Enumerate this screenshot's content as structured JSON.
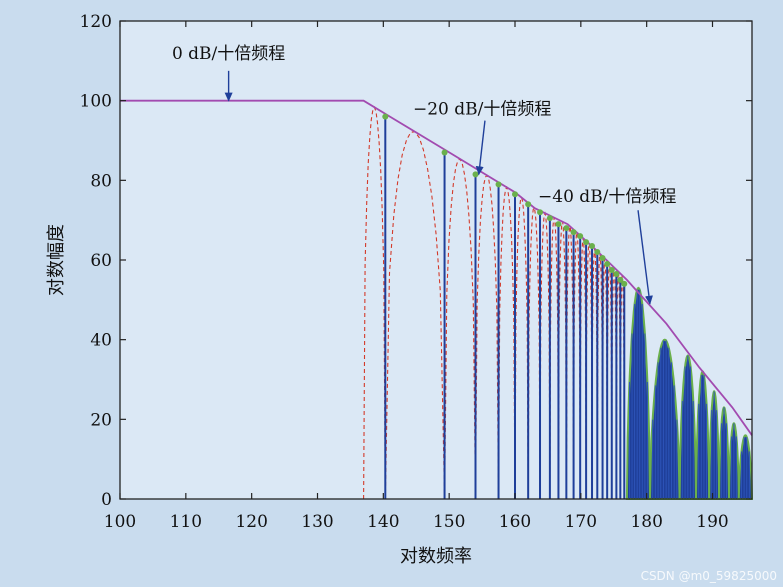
{
  "chart_data": {
    "type": "line",
    "title": "",
    "xlabel": "对数频率",
    "ylabel": "对数幅度",
    "xlim": [
      100,
      196
    ],
    "ylim": [
      0,
      120
    ],
    "x_ticks": [
      100,
      110,
      120,
      130,
      140,
      150,
      160,
      170,
      180,
      190
    ],
    "y_ticks": [
      0,
      20,
      40,
      60,
      80,
      100,
      120
    ],
    "grid": false,
    "series": [
      {
        "kind": "envelope",
        "color": "#a24bb0",
        "x": [
          100,
          137,
          141,
          150,
          155,
          160,
          163,
          168,
          172,
          177,
          183,
          188,
          193,
          196
        ],
        "y": [
          100,
          100,
          96,
          87,
          82,
          77,
          73,
          69,
          63,
          55,
          44,
          33,
          23,
          16
        ]
      },
      {
        "kind": "dashed-response",
        "color": "#d33a2a",
        "notch_start": 137,
        "notch_end": 177
      },
      {
        "kind": "sampled-response",
        "color": "#1f3f9a",
        "point_color": "#6ab04c",
        "points": [
          {
            "x": 140.3,
            "y": 96
          },
          {
            "x": 149.3,
            "y": 87
          },
          {
            "x": 154.0,
            "y": 81.5
          },
          {
            "x": 157.5,
            "y": 79
          },
          {
            "x": 160.0,
            "y": 76.5
          },
          {
            "x": 162.0,
            "y": 74
          },
          {
            "x": 163.8,
            "y": 72
          },
          {
            "x": 165.3,
            "y": 70.5
          },
          {
            "x": 166.6,
            "y": 69
          },
          {
            "x": 167.8,
            "y": 68
          },
          {
            "x": 168.9,
            "y": 67
          },
          {
            "x": 169.9,
            "y": 66
          },
          {
            "x": 170.8,
            "y": 64.5
          },
          {
            "x": 171.7,
            "y": 63.5
          },
          {
            "x": 172.5,
            "y": 62
          },
          {
            "x": 173.3,
            "y": 60.5
          },
          {
            "x": 174.0,
            "y": 59
          },
          {
            "x": 174.7,
            "y": 57.5
          },
          {
            "x": 175.4,
            "y": 56.5
          },
          {
            "x": 176.0,
            "y": 55
          },
          {
            "x": 176.6,
            "y": 54
          }
        ],
        "lobes": [
          {
            "x0": 177.0,
            "x1": 180.5,
            "peak": 53
          },
          {
            "x0": 180.5,
            "x1": 185.0,
            "peak": 40
          },
          {
            "x0": 185.0,
            "x1": 187.5,
            "peak": 36
          },
          {
            "x0": 187.5,
            "x1": 189.5,
            "peak": 32
          },
          {
            "x0": 189.5,
            "x1": 191.0,
            "peak": 27
          },
          {
            "x0": 191.0,
            "x1": 192.5,
            "peak": 23
          },
          {
            "x0": 192.5,
            "x1": 194.0,
            "peak": 19
          },
          {
            "x0": 194.0,
            "x1": 196.0,
            "peak": 16
          }
        ]
      }
    ],
    "annotations": [
      {
        "text": "0 dB/十倍频程",
        "x": 116.5,
        "y": 110.5,
        "arrow_to": [
          116.5,
          100
        ]
      },
      {
        "text": "−20 dB/十倍频程",
        "x": 144.5,
        "y": 96.5,
        "arrow_to": [
          154.5,
          81.5
        ]
      },
      {
        "text": "−40 dB/十倍频程",
        "x": 163.5,
        "y": 74.5,
        "arrow_to": [
          180.5,
          49
        ]
      }
    ]
  },
  "watermark": "CSDN @m0_59825000"
}
